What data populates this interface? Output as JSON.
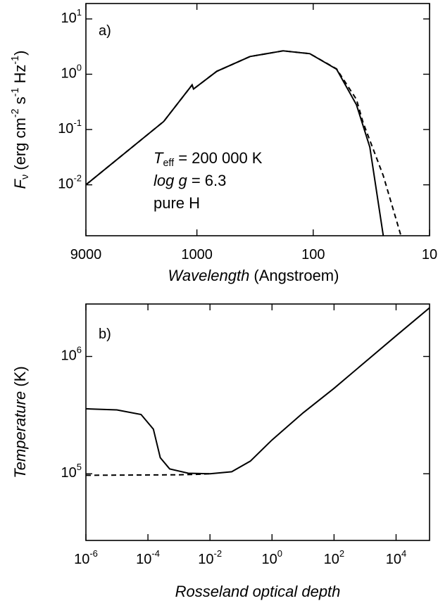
{
  "chart_data": [
    {
      "type": "line",
      "panel_label": "a)",
      "x_label": "Wavelength (Angstroem)",
      "y_label": "F_ν  (erg cm^-2 s^-1 Hz^-1)",
      "xscale": "log",
      "yscale": "log",
      "xlim": [
        9000,
        10
      ],
      "ylim": [
        0.0012,
        19
      ],
      "xticks": [
        9000,
        1000,
        100,
        10
      ],
      "yticks": [
        {
          "value": 10,
          "label": "10^1"
        },
        {
          "value": 1,
          "label": "10^0"
        },
        {
          "value": 0.1,
          "label": "10^-1"
        },
        {
          "value": 0.01,
          "label": "10^-2"
        }
      ],
      "annotations": [
        "T_eff = 200 000 K",
        "log g = 6.3",
        "pure H"
      ],
      "series": [
        {
          "color": "#000000",
          "style": "solid",
          "x": [
            9000,
            1930,
            1100,
            1070,
            674,
            349,
            181,
            107,
            63,
            42.5,
            32.6,
            25
          ],
          "values": [
            0.01,
            0.14,
            0.64,
            0.54,
            1.13,
            2.09,
            2.65,
            2.35,
            1.23,
            0.28,
            0.048,
            0.0012
          ]
        },
        {
          "color": "#000000",
          "style": "dashed",
          "x": [
            9000,
            1930,
            1100,
            1070,
            674,
            349,
            181,
            107,
            63,
            42.5,
            37.3,
            25,
            17.6
          ],
          "values": [
            0.01,
            0.14,
            0.64,
            0.54,
            1.13,
            2.09,
            2.65,
            2.35,
            1.25,
            0.35,
            0.134,
            0.0146,
            0.0012
          ]
        }
      ]
    },
    {
      "type": "line",
      "panel_label": "b)",
      "x_label": "Rosseland optical depth",
      "y_label": "Temperature  (K)",
      "xscale": "log",
      "yscale": "log",
      "xlim": [
        1e-06,
        120000
      ],
      "ylim": [
        27000,
        2800000
      ],
      "xticks": [
        {
          "value": 1e-06,
          "label": "10^-6"
        },
        {
          "value": 0.0001,
          "label": "10^-4"
        },
        {
          "value": 0.01,
          "label": "10^-2"
        },
        {
          "value": 1,
          "label": "10^0"
        },
        {
          "value": 100,
          "label": "10^2"
        },
        {
          "value": 10000,
          "label": "10^4"
        }
      ],
      "yticks": [
        {
          "value": 100000,
          "label": "10^5"
        },
        {
          "value": 1000000,
          "label": "10^6"
        }
      ],
      "series": [
        {
          "color": "#000000",
          "style": "solid",
          "x": [
            1e-06,
            1e-05,
            6e-05,
            0.00015,
            0.00025,
            0.0005,
            0.002,
            0.01,
            0.05,
            0.2,
            1,
            10,
            100,
            10000,
            120000
          ],
          "values": [
            358000,
            350000,
            320000,
            240000,
            137000,
            110000,
            101000,
            100000,
            104000,
            128000,
            194000,
            330000,
            535000,
            1500000,
            2600000
          ]
        },
        {
          "color": "#000000",
          "style": "dashed",
          "x": [
            1e-06,
            0.001,
            0.005,
            0.01
          ],
          "values": [
            97000,
            98000,
            99000,
            100000
          ]
        }
      ]
    }
  ]
}
